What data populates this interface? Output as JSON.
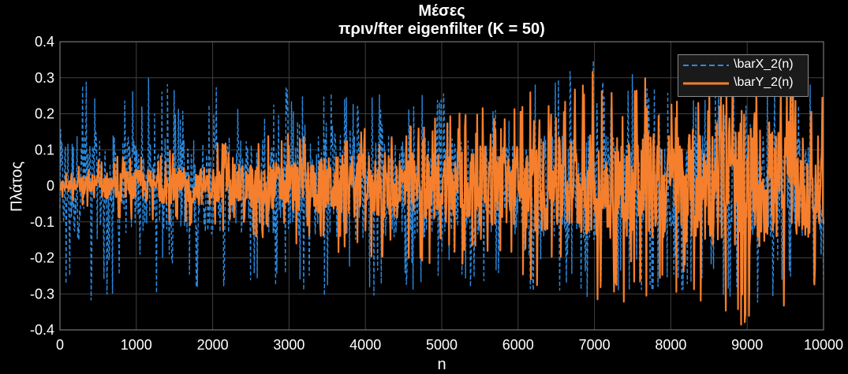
{
  "chart_data": {
    "type": "line",
    "title": "Μέσες",
    "subtitle": "πριν/fter eigenfilter (K = 50)",
    "xlabel": "n",
    "ylabel": "Πλάτος",
    "xlim": [
      0,
      10000
    ],
    "ylim": [
      -0.4,
      0.4
    ],
    "xticks": [
      "0",
      "1000",
      "2000",
      "3000",
      "4000",
      "5000",
      "6000",
      "7000",
      "8000",
      "9000",
      "10000"
    ],
    "yticks": [
      "0.4",
      "0.3",
      "0.2",
      "0.1",
      "0",
      "-0.1",
      "-0.2",
      "-0.3",
      "-0.4"
    ],
    "grid": true,
    "legend_position": "top-right",
    "background": "#000000",
    "axes_color": "#8c8c8c",
    "series": [
      {
        "name": "\\barX_2(n)",
        "style": "dashed",
        "color": "#2b8ae0",
        "envelope_x": [
          0,
          500,
          1000,
          2000,
          3000,
          4000,
          5000,
          6000,
          7000,
          8000,
          9000,
          10000
        ],
        "envelope_max": [
          0.35,
          0.33,
          0.3,
          0.3,
          0.28,
          0.26,
          0.26,
          0.3,
          0.35,
          0.3,
          0.28,
          0.3
        ],
        "envelope_min": [
          -0.35,
          -0.32,
          -0.3,
          -0.3,
          -0.3,
          -0.38,
          -0.3,
          -0.3,
          -0.33,
          -0.3,
          -0.33,
          -0.3
        ]
      },
      {
        "name": "\\barY_2(n)",
        "style": "solid",
        "color": "#f57f2c",
        "envelope_x": [
          0,
          500,
          1000,
          2000,
          3000,
          4000,
          5000,
          6000,
          7000,
          8000,
          9000,
          10000
        ],
        "envelope_max": [
          0.03,
          0.08,
          0.1,
          0.12,
          0.15,
          0.18,
          0.2,
          0.25,
          0.33,
          0.3,
          0.28,
          0.3
        ],
        "envelope_min": [
          -0.03,
          -0.08,
          -0.1,
          -0.12,
          -0.16,
          -0.2,
          -0.22,
          -0.27,
          -0.33,
          -0.34,
          -0.39,
          -0.3
        ]
      }
    ]
  }
}
